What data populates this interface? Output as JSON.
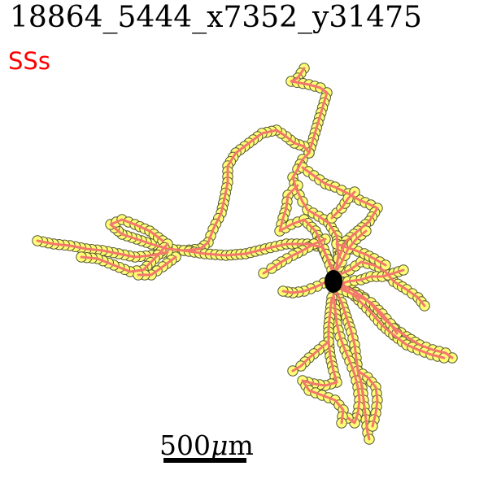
{
  "header": {
    "title": "18864_5444_x7352_y31475",
    "subtitle": "SSs"
  },
  "scale": {
    "label": "500",
    "unit_mu": "μ",
    "unit_m": "m"
  },
  "colors": {
    "branch": "#f4776c",
    "node_fill": "#ffff77",
    "node_stroke": "#555533",
    "soma": "#000000",
    "title": "#000000",
    "subtitle": "#ff0000"
  }
}
